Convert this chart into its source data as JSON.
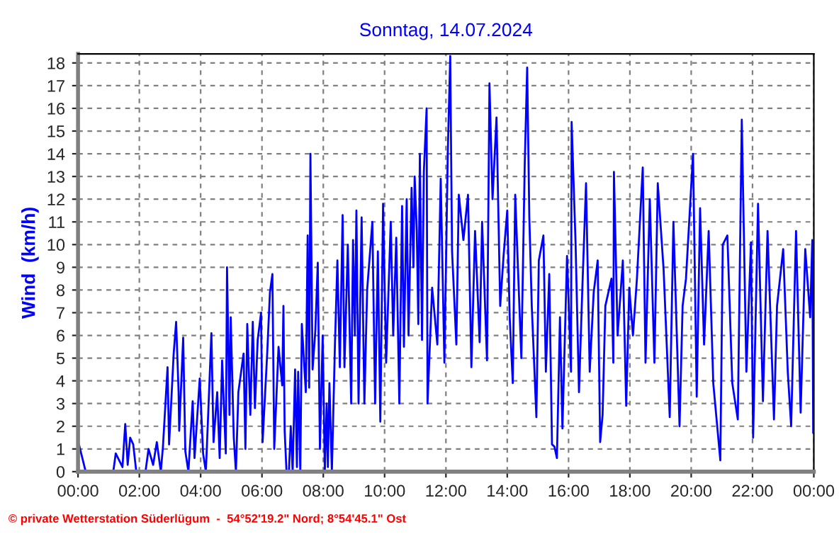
{
  "chart_data": {
    "type": "line",
    "title": "Sonntag, 14.07.2024",
    "ylabel": "Wind  (km/h)",
    "annotations": [
      "© private Wetterstation Süderlügum  -  54°52'19.2\" Nord; 8°54'45.1\" Ost"
    ],
    "xlim": [
      0,
      24
    ],
    "ylim": [
      0,
      18.4
    ],
    "xticks": [
      {
        "value": 0,
        "label": "00:00"
      },
      {
        "value": 2,
        "label": "02:00"
      },
      {
        "value": 4,
        "label": "04:00"
      },
      {
        "value": 6,
        "label": "06:00"
      },
      {
        "value": 8,
        "label": "08:00"
      },
      {
        "value": 10,
        "label": "10:00"
      },
      {
        "value": 12,
        "label": "12:00"
      },
      {
        "value": 14,
        "label": "14:00"
      },
      {
        "value": 16,
        "label": "16:00"
      },
      {
        "value": 18,
        "label": "18:00"
      },
      {
        "value": 20,
        "label": "20:00"
      },
      {
        "value": 22,
        "label": "22:00"
      },
      {
        "value": 24,
        "label": "00:00"
      }
    ],
    "yticks": [
      0,
      1,
      2,
      3,
      4,
      5,
      6,
      7,
      8,
      9,
      10,
      11,
      12,
      13,
      14,
      15,
      16,
      17,
      18
    ],
    "grid": true,
    "line_style": "solid",
    "marker": "none",
    "series": [
      {
        "color": "#0000ff",
        "x": [
          0.03,
          0.25,
          1.15,
          1.23,
          1.45,
          1.54,
          1.62,
          1.7,
          1.8,
          1.9,
          2.2,
          2.3,
          2.45,
          2.57,
          2.7,
          2.77,
          2.92,
          2.97,
          3.12,
          3.2,
          3.28,
          3.3,
          3.43,
          3.5,
          3.6,
          3.74,
          3.8,
          3.97,
          4.08,
          4.17,
          4.23,
          4.35,
          4.42,
          4.54,
          4.62,
          4.7,
          4.82,
          4.86,
          4.94,
          4.98,
          5.08,
          5.15,
          5.23,
          5.4,
          5.46,
          5.52,
          5.62,
          5.7,
          5.77,
          5.86,
          5.97,
          6.02,
          6.17,
          6.26,
          6.34,
          6.4,
          6.54,
          6.66,
          6.7,
          6.74,
          6.8,
          6.88,
          6.94,
          7.0,
          7.08,
          7.14,
          7.18,
          7.25,
          7.3,
          7.43,
          7.49,
          7.54,
          7.58,
          7.65,
          7.74,
          7.82,
          7.89,
          7.98,
          8.05,
          8.11,
          8.15,
          8.2,
          8.28,
          8.38,
          8.46,
          8.54,
          8.63,
          8.69,
          8.8,
          8.91,
          8.97,
          9.03,
          9.08,
          9.15,
          9.25,
          9.34,
          9.43,
          9.6,
          9.69,
          9.78,
          9.86,
          9.95,
          10.05,
          10.2,
          10.28,
          10.38,
          10.48,
          10.57,
          10.63,
          10.72,
          10.78,
          10.88,
          10.94,
          10.98,
          11.05,
          11.1,
          11.15,
          11.22,
          11.28,
          11.37,
          11.4,
          11.55,
          11.72,
          11.83,
          11.95,
          12.06,
          12.14,
          12.2,
          12.34,
          12.42,
          12.57,
          12.72,
          12.83,
          12.95,
          13.1,
          13.18,
          13.34,
          13.42,
          13.52,
          13.65,
          13.77,
          13.88,
          14.0,
          14.08,
          14.18,
          14.26,
          14.46,
          14.57,
          14.65,
          14.72,
          14.8,
          14.95,
          15.03,
          15.18,
          15.26,
          15.37,
          15.46,
          15.54,
          15.62,
          15.72,
          15.8,
          15.95,
          16.08,
          16.1,
          16.23,
          16.34,
          16.45,
          16.57,
          16.69,
          16.82,
          16.95,
          17.03,
          17.11,
          17.2,
          17.4,
          17.46,
          17.48,
          17.6,
          17.77,
          17.88,
          17.98,
          18.1,
          18.23,
          18.42,
          18.51,
          18.65,
          18.8,
          18.91,
          19.1,
          19.3,
          19.42,
          19.62,
          19.72,
          19.83,
          20.06,
          20.18,
          20.29,
          20.42,
          20.57,
          20.72,
          20.95,
          21.03,
          21.18,
          21.34,
          21.52,
          21.65,
          21.8,
          21.95,
          22.02,
          22.18,
          22.34,
          22.49,
          22.7,
          22.8,
          23.0,
          23.15,
          23.26,
          23.42,
          23.57,
          23.72,
          23.88,
          23.95,
          23.98
        ],
        "values": [
          1.2,
          0,
          0,
          0.8,
          0.2,
          2.1,
          0.3,
          1.5,
          1.2,
          0,
          0,
          1.0,
          0.3,
          1.3,
          0,
          1.1,
          4.6,
          1.2,
          5.2,
          6.6,
          3.5,
          1.8,
          5.9,
          0.9,
          0,
          3.1,
          0.6,
          4.1,
          0.8,
          0,
          2.0,
          6.1,
          1.3,
          3.5,
          0.6,
          4.9,
          0.8,
          9.0,
          2.5,
          6.8,
          1.5,
          0,
          3.5,
          5.2,
          1.0,
          6.5,
          2.5,
          6.6,
          2.8,
          5.8,
          7.0,
          1.3,
          5.2,
          7.9,
          8.7,
          1.0,
          5.5,
          3.8,
          7.3,
          1.8,
          0,
          0,
          2.0,
          0,
          4.5,
          0.2,
          4.4,
          0,
          6.5,
          3.5,
          10.4,
          3.7,
          14.0,
          4.5,
          6.2,
          9.2,
          1.0,
          6.0,
          0,
          3.0,
          0.2,
          3.9,
          0,
          5.6,
          9.3,
          4.6,
          11.3,
          4.6,
          10.0,
          3.0,
          10.2,
          6.0,
          11.5,
          3.0,
          11.2,
          3.0,
          8.0,
          11.0,
          3.0,
          9.7,
          2.2,
          11.8,
          4.8,
          11.0,
          6.0,
          10.3,
          3.0,
          11.7,
          5.5,
          12.0,
          6.0,
          12.5,
          9.0,
          13.0,
          10.6,
          6.5,
          14.0,
          5.8,
          13.2,
          16.0,
          3.0,
          8.1,
          5.6,
          12.9,
          4.8,
          14.0,
          18.3,
          9.7,
          5.6,
          12.2,
          10.2,
          12.2,
          4.6,
          10.6,
          5.7,
          11.0,
          4.9,
          17.1,
          12.0,
          15.6,
          7.3,
          9.5,
          11.5,
          6.8,
          3.9,
          12.2,
          5.0,
          13.5,
          17.8,
          11.2,
          7.3,
          2.4,
          9.3,
          10.4,
          4.4,
          8.7,
          1.2,
          1.1,
          0.6,
          6.8,
          1.9,
          9.5,
          4.4,
          15.4,
          10.0,
          3.5,
          8.1,
          12.7,
          4.4,
          7.9,
          9.3,
          1.3,
          2.5,
          7.3,
          8.5,
          4.8,
          13.2,
          6.0,
          9.3,
          2.9,
          8.1,
          6.0,
          8.5,
          13.4,
          4.8,
          12.0,
          4.8,
          12.7,
          8.9,
          2.4,
          11.0,
          2.0,
          7.3,
          8.5,
          14.0,
          3.3,
          11.6,
          5.6,
          10.6,
          3.9,
          0.5,
          10.0,
          10.4,
          3.9,
          2.3,
          15.5,
          4.4,
          10.1,
          1.5,
          11.8,
          3.1,
          10.6,
          2.3,
          7.3,
          9.8,
          4.4,
          2.0,
          10.6,
          2.6,
          9.8,
          6.8,
          10.2,
          1.7
        ]
      }
    ]
  }
}
